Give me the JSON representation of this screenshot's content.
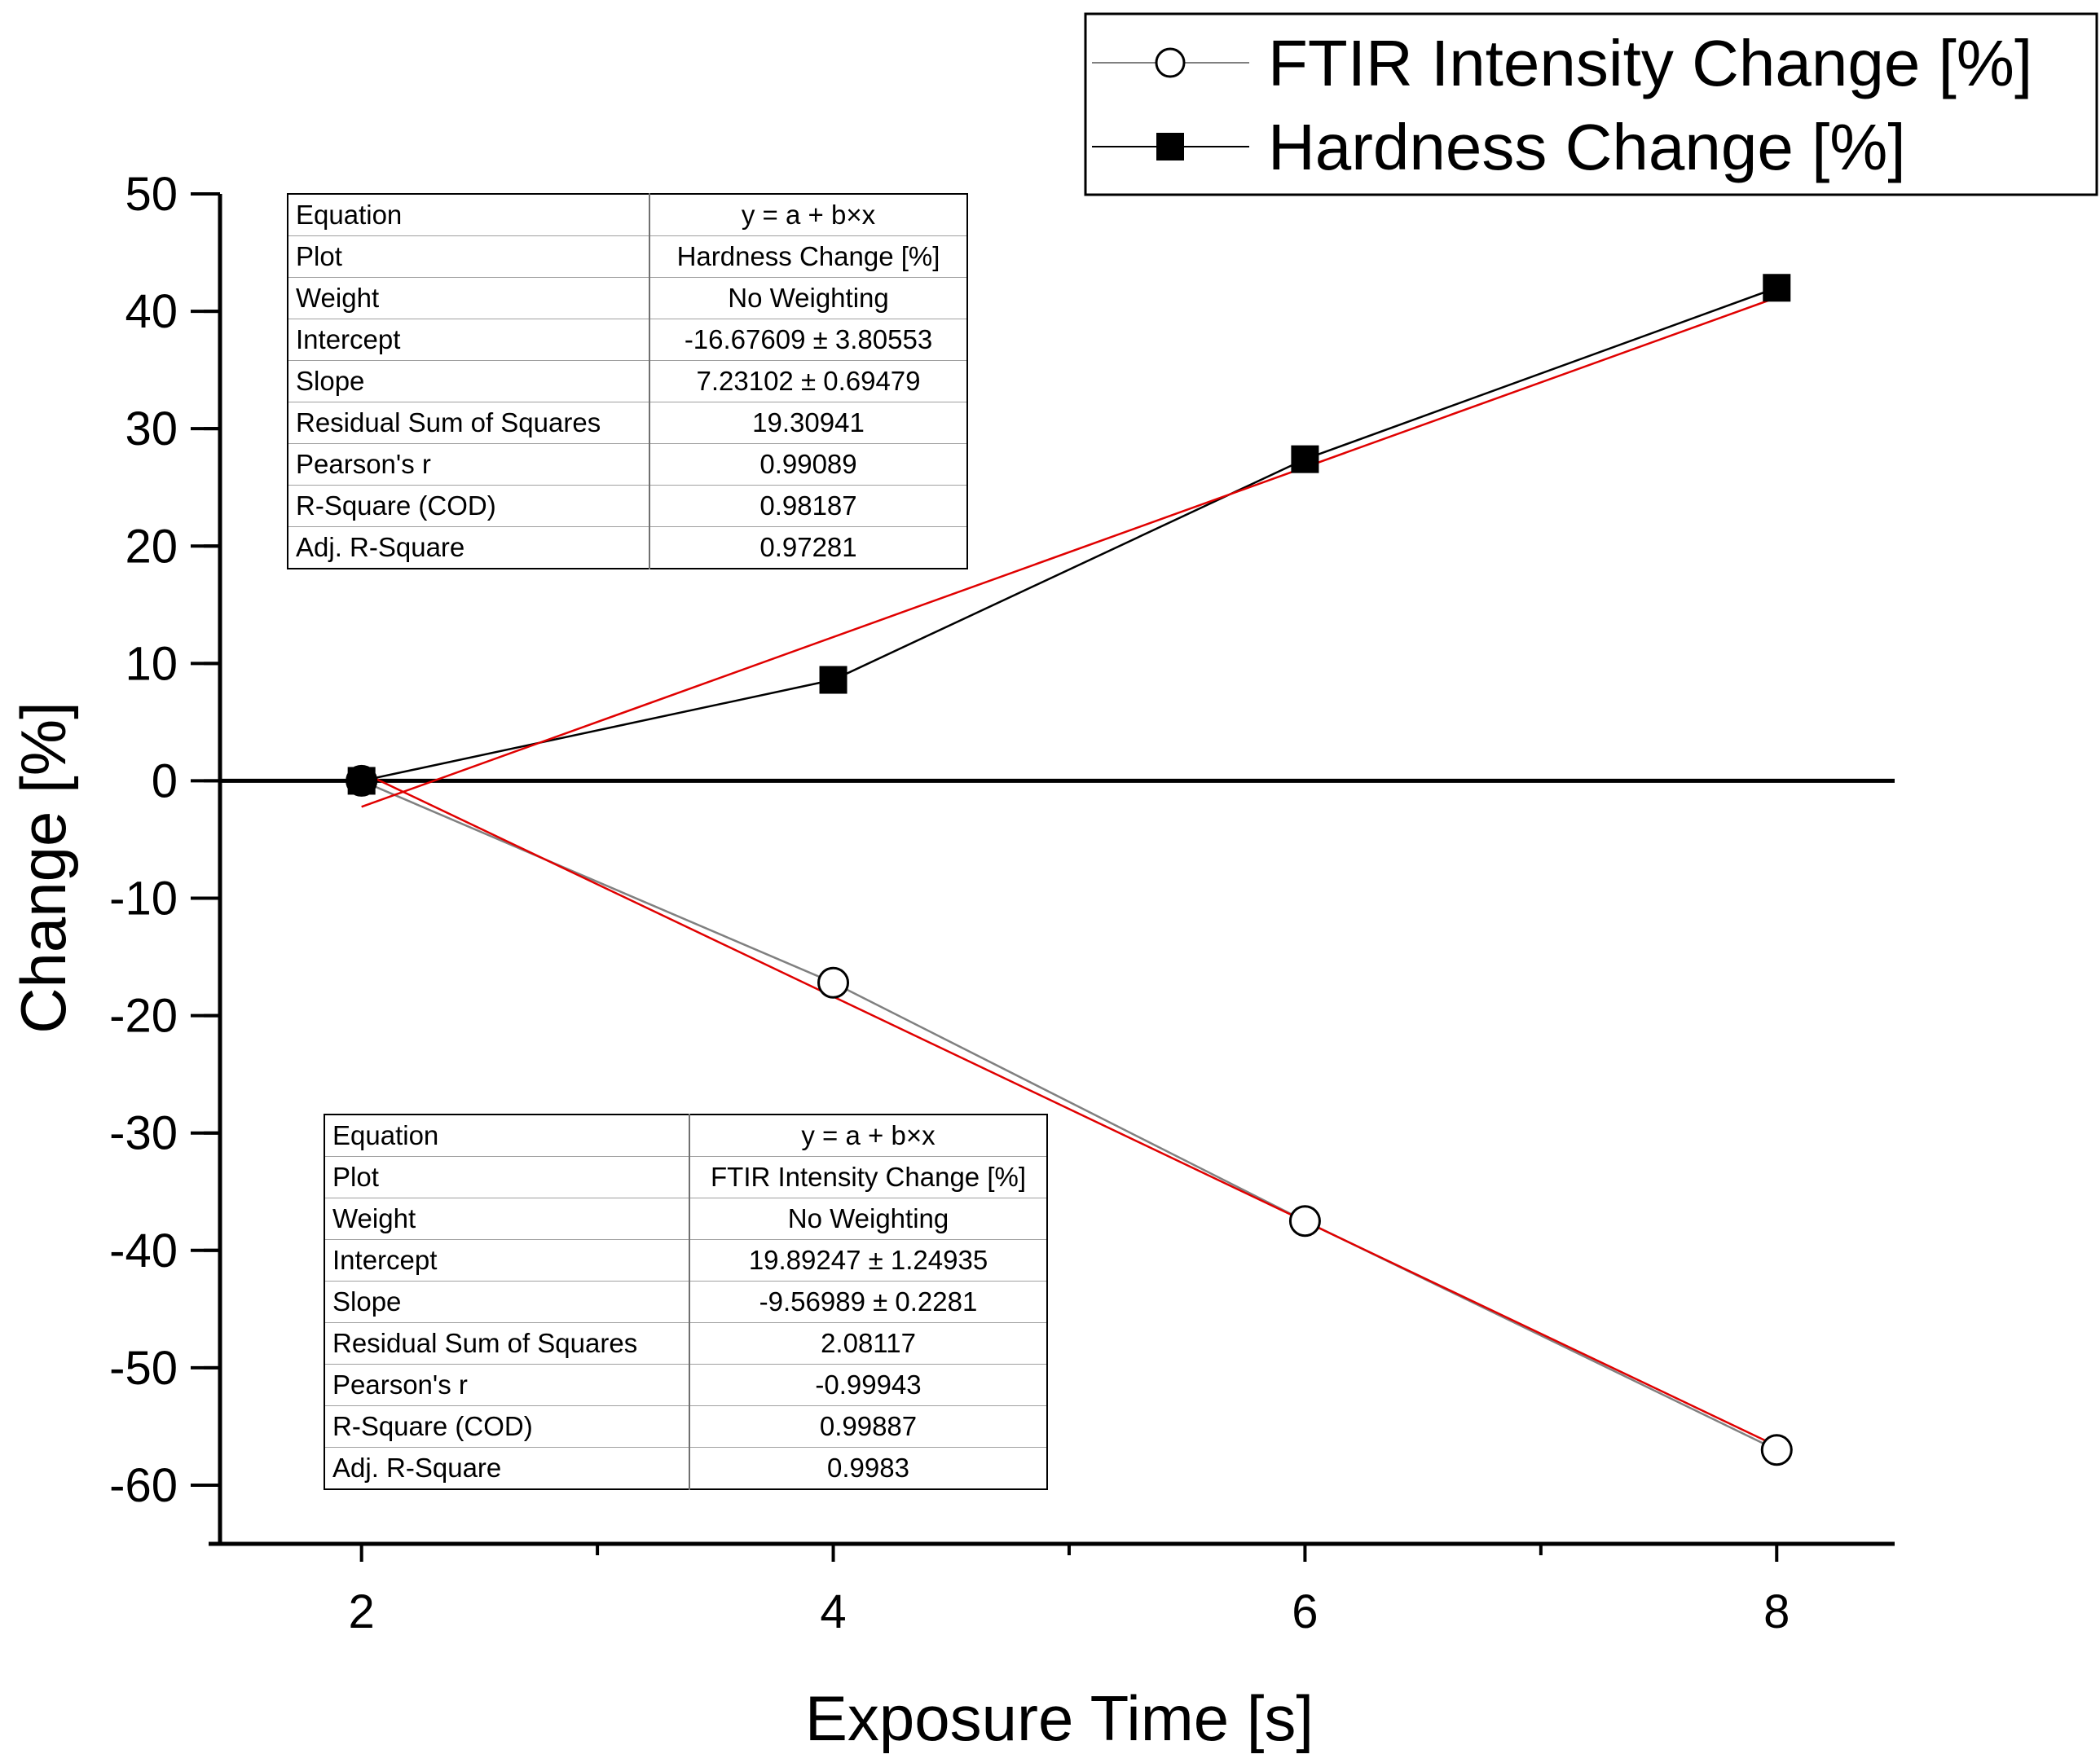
{
  "chart_data": {
    "type": "line",
    "xlabel": "Exposure Time [s]",
    "ylabel": "Change [%]",
    "xlim": [
      1.4,
      8.5
    ],
    "ylim": [
      -65,
      50
    ],
    "x_ticks": [
      2,
      4,
      6,
      8
    ],
    "x_minor_ticks": [
      3,
      5,
      7
    ],
    "y_ticks": [
      50,
      40,
      30,
      20,
      10,
      0,
      -10,
      -20,
      -30,
      -40,
      -50,
      -60
    ],
    "zero_line": true,
    "legend_position": "top-right",
    "series": [
      {
        "name": "FTIR Intensity Change [%]",
        "marker": "open-circle",
        "line_color": "#808080",
        "x": [
          2,
          4,
          6,
          8
        ],
        "y": [
          0,
          -17.2,
          -37.5,
          -57.0
        ],
        "fit": {
          "intercept": 19.89247,
          "slope": -9.56989,
          "color": "#e00000"
        }
      },
      {
        "name": "Hardness Change [%]",
        "marker": "filled-square",
        "line_color": "#000000",
        "x": [
          2,
          4,
          6,
          8
        ],
        "y": [
          0,
          8.6,
          27.4,
          42.0
        ],
        "fit": {
          "intercept": -16.67609,
          "slope": 7.23102,
          "color": "#e00000"
        }
      }
    ]
  },
  "fit_tables": {
    "hardness": [
      {
        "param": "Equation",
        "value": "y = a + b×x"
      },
      {
        "param": "Plot",
        "value": "Hardness Change [%]"
      },
      {
        "param": "Weight",
        "value": "No Weighting"
      },
      {
        "param": "Intercept",
        "value": "-16.67609 ± 3.80553"
      },
      {
        "param": "Slope",
        "value": "7.23102 ± 0.69479"
      },
      {
        "param": "Residual Sum of Squares",
        "value": "19.30941"
      },
      {
        "param": "Pearson's r",
        "value": "0.99089"
      },
      {
        "param": "R-Square (COD)",
        "value": "0.98187"
      },
      {
        "param": "Adj. R-Square",
        "value": "0.97281"
      }
    ],
    "ftir": [
      {
        "param": "Equation",
        "value": "y = a + b×x"
      },
      {
        "param": "Plot",
        "value": "FTIR Intensity Change [%]"
      },
      {
        "param": "Weight",
        "value": "No Weighting"
      },
      {
        "param": "Intercept",
        "value": "19.89247 ± 1.24935"
      },
      {
        "param": "Slope",
        "value": "-9.56989 ± 0.2281"
      },
      {
        "param": "Residual Sum of Squares",
        "value": "2.08117"
      },
      {
        "param": "Pearson's r",
        "value": "-0.99943"
      },
      {
        "param": "R-Square (COD)",
        "value": "0.99887"
      },
      {
        "param": "Adj. R-Square",
        "value": "0.9983"
      }
    ]
  },
  "colors": {
    "fit_line": "#e00000",
    "axis": "#000000",
    "ftir_line": "#808080",
    "hardness_line": "#000000"
  }
}
